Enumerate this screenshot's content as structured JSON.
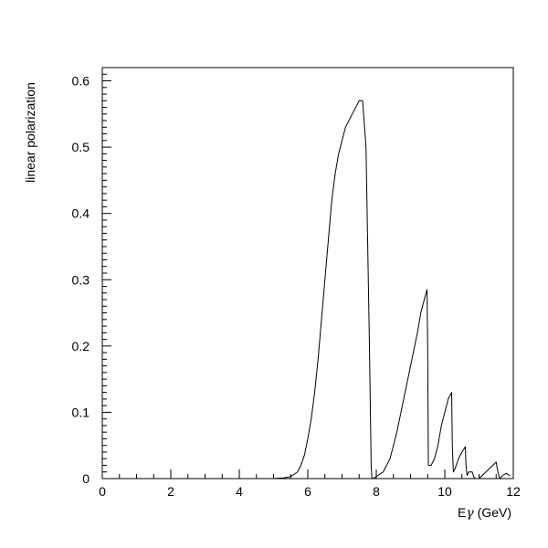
{
  "chart_data": {
    "type": "line",
    "title": "",
    "xlabel_prefix": "E",
    "xlabel_symbol": "γ",
    "xlabel_suffix": " (GeV)",
    "ylabel": "linear polarization",
    "xlim": [
      0,
      12
    ],
    "ylim": [
      0,
      0.62
    ],
    "grid": false,
    "x_ticks": [
      0,
      2,
      4,
      6,
      8,
      10,
      12
    ],
    "x_tick_labels": [
      "0",
      "2",
      "4",
      "6",
      "8",
      "10",
      "12"
    ],
    "y_ticks": [
      0,
      0.1,
      0.2,
      0.3,
      0.4,
      0.5,
      0.6
    ],
    "y_tick_labels": [
      "0",
      "0.1",
      "0.2",
      "0.3",
      "0.4",
      "0.5",
      "0.6"
    ],
    "series": [
      {
        "color": "#000000",
        "x": [
          5.0,
          5.3,
          5.5,
          5.7,
          5.8,
          5.9,
          6.0,
          6.1,
          6.2,
          6.3,
          6.4,
          6.5,
          6.6,
          6.7,
          6.8,
          6.9,
          7.0,
          7.1,
          7.2,
          7.3,
          7.4,
          7.5,
          7.6,
          7.7,
          7.8,
          7.85,
          7.87,
          7.9,
          8.0,
          8.2,
          8.4,
          8.6,
          8.8,
          9.0,
          9.2,
          9.3,
          9.4,
          9.48,
          9.5,
          9.52,
          9.6,
          9.7,
          9.8,
          9.9,
          10.0,
          10.1,
          10.2,
          10.22,
          10.25,
          10.3,
          10.4,
          10.5,
          10.6,
          10.62,
          10.65,
          10.7,
          10.8,
          10.85,
          10.9,
          11.0,
          11.2,
          11.4,
          11.5,
          11.55,
          11.6,
          11.7,
          11.8,
          11.9
        ],
        "y": [
          0.0,
          0.001,
          0.003,
          0.01,
          0.02,
          0.035,
          0.06,
          0.09,
          0.13,
          0.18,
          0.24,
          0.3,
          0.36,
          0.42,
          0.46,
          0.49,
          0.51,
          0.53,
          0.54,
          0.55,
          0.56,
          0.57,
          0.57,
          0.5,
          0.2,
          0.02,
          0.002,
          0.0,
          0.003,
          0.01,
          0.03,
          0.07,
          0.12,
          0.17,
          0.22,
          0.25,
          0.27,
          0.285,
          0.2,
          0.02,
          0.02,
          0.03,
          0.05,
          0.08,
          0.1,
          0.12,
          0.13,
          0.05,
          0.01,
          0.015,
          0.03,
          0.04,
          0.048,
          0.02,
          0.005,
          0.01,
          0.01,
          0.002,
          0.0,
          0.0,
          0.01,
          0.02,
          0.025,
          0.01,
          0.0,
          0.005,
          0.008,
          0.004
        ]
      }
    ]
  }
}
